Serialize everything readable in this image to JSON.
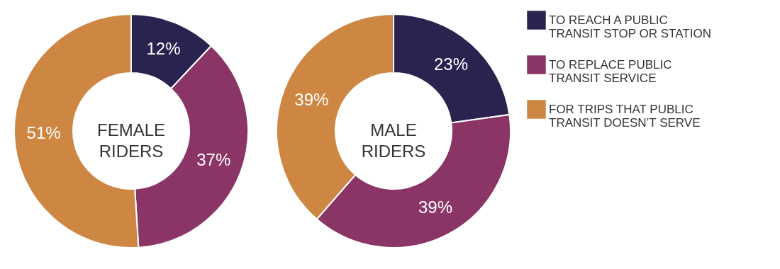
{
  "chart_data": [
    {
      "type": "donut",
      "title": "FEMALE\nRIDERS",
      "categories": [
        null,
        null,
        null
      ],
      "values": [
        12,
        37,
        51
      ],
      "colors": [
        "#2a2350",
        "#8a3566",
        "#cd8743"
      ],
      "value_labels": [
        "12%",
        "37%",
        "51%"
      ],
      "legend": false
    },
    {
      "type": "donut",
      "title": "MALE\nRIDERS",
      "categories": [
        "TO REACH A PUBLIC\nTRANSIT STOP OR STATION",
        "TO REPLACE PUBLIC\nTRANSIT SERVICE",
        "FOR TRIPS THAT PUBLIC\nTRANSIT DOESN’T SERVE"
      ],
      "values": [
        23,
        39,
        39
      ],
      "colors": [
        "#2a2350",
        "#8a3566",
        "#cd8743"
      ],
      "value_labels": [
        "23%",
        "39%",
        "39%"
      ],
      "legend": "right"
    }
  ]
}
